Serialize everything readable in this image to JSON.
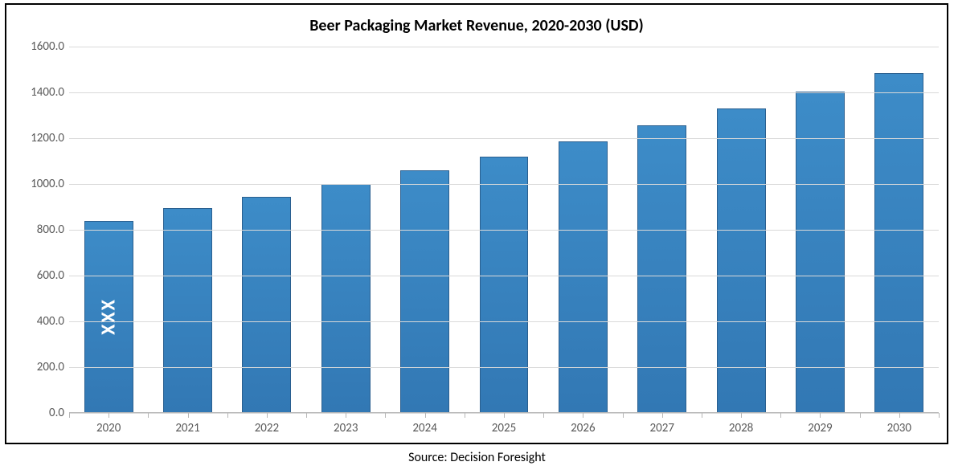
{
  "chart": {
    "type": "bar",
    "title": "Beer Packaging Market Revenue, 2020-2030 (USD)",
    "title_fontsize": 20,
    "title_fontweight": 700,
    "categories": [
      "2020",
      "2021",
      "2022",
      "2023",
      "2024",
      "2025",
      "2026",
      "2027",
      "2028",
      "2029",
      "2030"
    ],
    "values": [
      840,
      895,
      945,
      1000,
      1060,
      1120,
      1185,
      1255,
      1330,
      1405,
      1485
    ],
    "bar_color": "#3278b4",
    "bar_border_color": "#2a5f8f",
    "bar_gradient_top": "#3d8cc8",
    "ylim": [
      0,
      1600
    ],
    "ytick_step": 200,
    "ytick_labels": [
      "0.0",
      "200.0",
      "400.0",
      "600.0",
      "800.0",
      "1000.0",
      "1200.0",
      "1400.0",
      "1600.0"
    ],
    "grid_color": "#d9d9d9",
    "axis_color": "#b7b7b7",
    "axis_label_color": "#595959",
    "axis_label_fontsize": 15,
    "background_color": "#ffffff",
    "frame_border_color": "#000000",
    "frame_border_width": 2,
    "bar_width_ratio": 0.62,
    "first_bar_overlay": "XXX",
    "overlay_color": "#ffffff",
    "overlay_fontsize": 24
  },
  "source": {
    "label": "Source: Decision Foresight",
    "fontsize": 16,
    "color": "#000000"
  }
}
